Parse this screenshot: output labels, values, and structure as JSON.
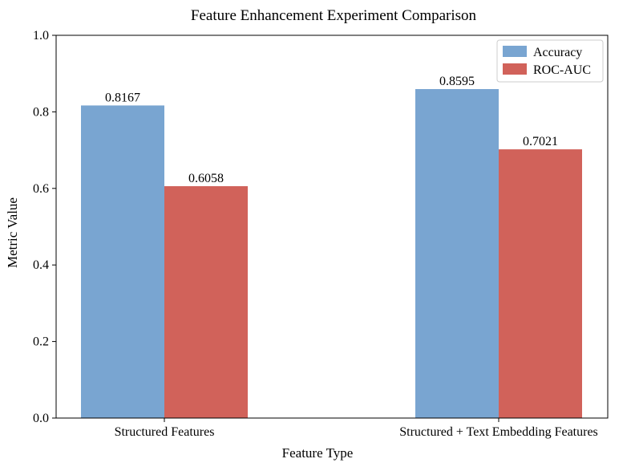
{
  "chart_data": {
    "type": "bar",
    "title": "Feature Enhancement Experiment Comparison",
    "xlabel": "Feature Type",
    "ylabel": "Metric Value",
    "categories": [
      "Structured Features",
      "Structured + Text Embedding Features"
    ],
    "series": [
      {
        "name": "Accuracy",
        "values": [
          0.8167,
          0.8595
        ],
        "labels": [
          "0.8167",
          "0.8595"
        ],
        "color": "#79a5d1"
      },
      {
        "name": "ROC-AUC",
        "values": [
          0.6058,
          0.7021
        ],
        "labels": [
          "0.6058",
          "0.7021"
        ],
        "color": "#d1625a"
      }
    ],
    "ylim": [
      0,
      1.0
    ],
    "yticks": [
      0.0,
      0.2,
      0.4,
      0.6,
      0.8,
      1.0
    ],
    "ytick_labels": [
      "0.0",
      "0.2",
      "0.4",
      "0.6",
      "0.8",
      "1.0"
    ],
    "grid": false,
    "legend_position": "top-right"
  }
}
